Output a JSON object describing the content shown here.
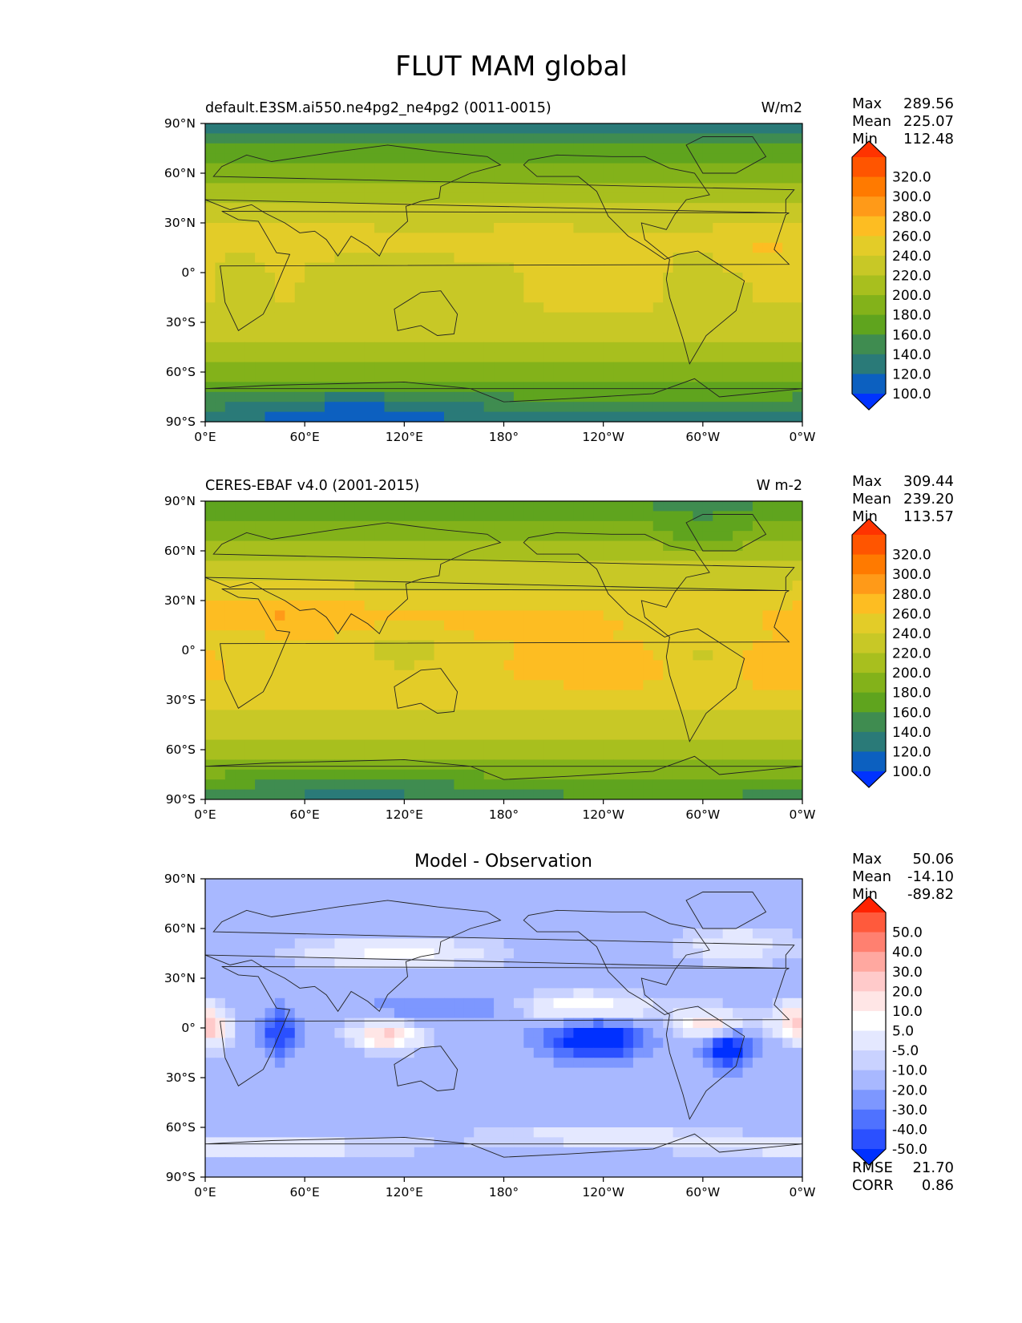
{
  "figure": {
    "title": "FLUT MAM global"
  },
  "x_ticks": [
    "0°E",
    "60°E",
    "120°E",
    "180°",
    "120°W",
    "60°W",
    "0°W"
  ],
  "y_ticks": [
    "90°N",
    "60°N",
    "30°N",
    "0°",
    "30°S",
    "60°S",
    "90°S"
  ],
  "stat_labels": {
    "max": "Max",
    "mean": "Mean",
    "min": "Min",
    "rmse": "RMSE",
    "corr": "CORR"
  },
  "panels": [
    {
      "id": "model",
      "left_title": "default.E3SM.ai550.ne4pg2_ne4pg2 (0011-0015)",
      "center_title": "",
      "units": "W/m2",
      "stats": {
        "max": "289.56",
        "mean": "225.07",
        "min": "112.48"
      },
      "colorbar": {
        "labels": [
          "320.0",
          "300.0",
          "280.0",
          "260.0",
          "240.0",
          "220.0",
          "200.0",
          "180.0",
          "160.0",
          "140.0",
          "120.0",
          "100.0"
        ],
        "colors": [
          "#ff3300",
          "#ff5500",
          "#ff7a00",
          "#ff9a18",
          "#fdbd22",
          "#e3cc28",
          "#c8c826",
          "#a8bf1e",
          "#83b21a",
          "#5fa41e",
          "#3f8c50",
          "#2a7a78",
          "#0c60c0",
          "#0033ff"
        ]
      }
    },
    {
      "id": "obs",
      "left_title": "CERES-EBAF v4.0 (2001-2015)",
      "center_title": "",
      "units": "W m-2",
      "stats": {
        "max": "309.44",
        "mean": "239.20",
        "min": "113.57"
      },
      "colorbar": {
        "labels": [
          "320.0",
          "300.0",
          "280.0",
          "260.0",
          "240.0",
          "220.0",
          "200.0",
          "180.0",
          "160.0",
          "140.0",
          "120.0",
          "100.0"
        ],
        "colors": [
          "#ff3300",
          "#ff5500",
          "#ff7a00",
          "#ff9a18",
          "#fdbd22",
          "#e3cc28",
          "#c8c826",
          "#a8bf1e",
          "#83b21a",
          "#5fa41e",
          "#3f8c50",
          "#2a7a78",
          "#0c60c0",
          "#0033ff"
        ]
      }
    },
    {
      "id": "diff",
      "left_title": "",
      "center_title": "Model - Observation",
      "units": "",
      "stats": {
        "max": "50.06",
        "mean": "-14.10",
        "min": "-89.82",
        "rmse": "21.70",
        "corr": "0.86"
      },
      "colorbar": {
        "labels": [
          "50.0",
          "40.0",
          "30.0",
          "20.0",
          "10.0",
          "5.0",
          "-5.0",
          "-10.0",
          "-20.0",
          "-30.0",
          "-40.0",
          "-50.0"
        ],
        "colors": [
          "#ff2200",
          "#ff5a3c",
          "#ff8070",
          "#ffa8a0",
          "#ffcaca",
          "#ffe6e6",
          "#ffffff",
          "#e4e8ff",
          "#c9d2ff",
          "#a8b8ff",
          "#7d97ff",
          "#4f72ff",
          "#2b50ff",
          "#0030ff"
        ]
      }
    }
  ]
}
